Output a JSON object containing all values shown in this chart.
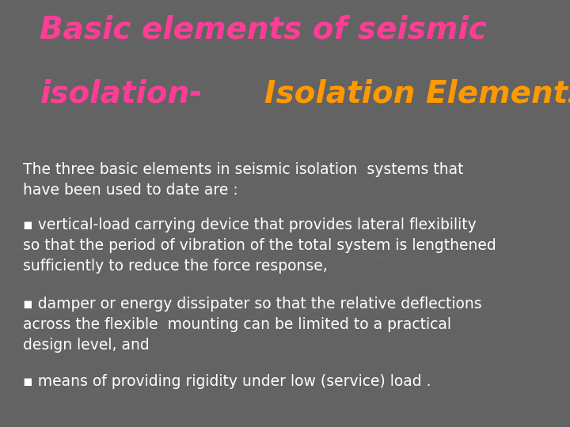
{
  "background_color": "#636363",
  "title_line1": "Basic elements of seismic",
  "title_line2_pink": "isolation-",
  "title_line2_orange": "Isolation Elements",
  "title_color_pink": "#ff3d96",
  "title_color_orange": "#ff9900",
  "title_fontsize": 28,
  "body_color": "#ffffff",
  "body_fontsize": 13.5,
  "intro_text": "The three basic elements in seismic isolation  systems that\nhave been used to date are :",
  "bullet1": "▪ vertical-load carrying device that provides lateral flexibility\nso that the period of vibration of the total system is lengthened\nsufficiently to reduce the force response,",
  "bullet2": "▪ damper or energy dissipater so that the relative deflections\nacross the flexible  mounting can be limited to a practical\ndesign level, and",
  "bullet3": "▪ means of providing rigidity under low (service) load ."
}
